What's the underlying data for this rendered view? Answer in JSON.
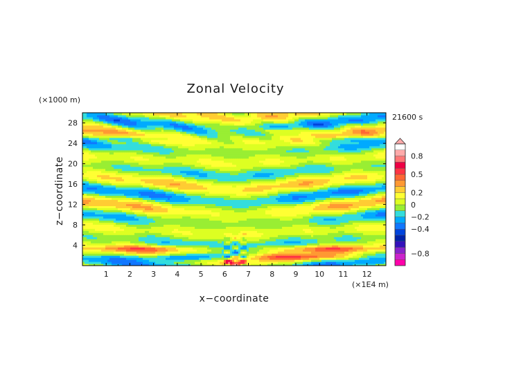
{
  "chart_data": {
    "type": "heatmap",
    "title": "Zonal Velocity",
    "xlabel": "x−coordinate",
    "ylabel": "z−coordinate",
    "x_unit": "(×1E4 m)",
    "y_unit": "(×1000 m)",
    "time_label": "21600 s",
    "xlim": [
      0,
      12.8
    ],
    "ylim": [
      0,
      30
    ],
    "x_ticks": [
      1,
      2,
      3,
      4,
      5,
      6,
      7,
      8,
      9,
      10,
      11,
      12
    ],
    "y_ticks": [
      4,
      8,
      12,
      16,
      20,
      24,
      28
    ],
    "colorbar": {
      "min": -1.0,
      "max": 1.0,
      "levels": [
        -0.9,
        -0.8,
        -0.7,
        -0.6,
        -0.5,
        -0.4,
        -0.3,
        -0.2,
        -0.1,
        0,
        0.1,
        0.2,
        0.3,
        0.4,
        0.5,
        0.6,
        0.7,
        0.8,
        0.9
      ],
      "colors": [
        "#ff00aa",
        "#cc22cc",
        "#8822cc",
        "#3311bb",
        "#0022aa",
        "#0044dd",
        "#1177ff",
        "#00aaff",
        "#33dddd",
        "#99ee33",
        "#ddff22",
        "#ffff33",
        "#ffcc33",
        "#ff9933",
        "#ff6633",
        "#ff3344",
        "#ee0044",
        "#ff7777",
        "#ffaaaa"
      ],
      "tick_labels": [
        {
          "value": 0.8,
          "label": "0.8"
        },
        {
          "value": 0.5,
          "label": "0.5"
        },
        {
          "value": 0.2,
          "label": "0.2"
        },
        {
          "value": 0,
          "label": "0"
        },
        {
          "value": -0.2,
          "label": "−0.2"
        },
        {
          "value": -0.4,
          "label": "−0.4"
        },
        {
          "value": -0.8,
          "label": "−0.8"
        }
      ]
    },
    "features": [
      {
        "kind": "jet",
        "x_center": 4.6,
        "z": 1.7,
        "x_half_width": 2.2,
        "z_half_width": 0.7,
        "value": -0.55
      },
      {
        "kind": "jet",
        "x_center": 9.0,
        "z": 1.7,
        "x_half_width": 3.0,
        "z_half_width": 0.6,
        "value": 0.3
      },
      {
        "kind": "jet",
        "x_center": 2.8,
        "z": 3.4,
        "x_half_width": 2.5,
        "z_half_width": 0.6,
        "value": 0.3
      },
      {
        "kind": "jet",
        "x_center": 10.0,
        "z": 3.4,
        "x_half_width": 2.5,
        "z_half_width": 0.6,
        "value": 0.3
      },
      {
        "kind": "jet",
        "x_center": 6.4,
        "z": 0.6,
        "x_half_width": 0.35,
        "z_half_width": 0.8,
        "value": 0.55
      },
      {
        "kind": "jet",
        "x_center": 2.0,
        "z": 25.0,
        "x_half_width": 1.5,
        "z_half_width": 0.5,
        "value": -0.25
      },
      {
        "kind": "jet",
        "x_center": 11.0,
        "z": 24.8,
        "x_half_width": 1.5,
        "z_half_width": 0.5,
        "value": -0.25
      },
      {
        "kind": "jet",
        "x_center": 8.5,
        "z": 26.5,
        "x_half_width": 1.0,
        "z_half_width": 0.5,
        "value": 0.3
      }
    ]
  }
}
